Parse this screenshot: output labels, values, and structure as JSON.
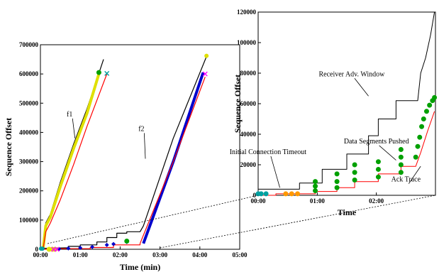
{
  "chart_data": [
    {
      "type": "line",
      "panel": "main",
      "xlabel": "Time (min)",
      "ylabel": "Sequence Offset",
      "xlim": [
        0,
        300
      ],
      "ylim": [
        0,
        700000
      ],
      "x_ticks": [
        {
          "v": 0,
          "label": "00:00"
        },
        {
          "v": 60,
          "label": "01:00"
        },
        {
          "v": 120,
          "label": "02:00"
        },
        {
          "v": 180,
          "label": "03:00"
        },
        {
          "v": 240,
          "label": "04:00"
        },
        {
          "v": 300,
          "label": "05:00"
        }
      ],
      "y_ticks": [
        {
          "v": 0,
          "label": "0"
        },
        {
          "v": 100000,
          "label": "100000"
        },
        {
          "v": 200000,
          "label": "200000"
        },
        {
          "v": 300000,
          "label": "300000"
        },
        {
          "v": 400000,
          "label": "400000"
        },
        {
          "v": 500000,
          "label": "500000"
        },
        {
          "v": 600000,
          "label": "600000"
        },
        {
          "v": 700000,
          "label": "700000"
        }
      ],
      "annotations": [
        {
          "text": "f1",
          "x": 44,
          "y": 455000,
          "ax": 52,
          "ay": 380000
        },
        {
          "text": "f2",
          "x": 152,
          "y": 405000,
          "ax": 158,
          "ay": 310000
        }
      ],
      "series": [
        {
          "id": "f1-window",
          "color": "#000000",
          "width": 1.2,
          "points": [
            [
              4,
              0
            ],
            [
              6,
              40000
            ],
            [
              8,
              90000
            ],
            [
              15,
              120000
            ],
            [
              30,
              230000
            ],
            [
              50,
              360000
            ],
            [
              70,
              480000
            ],
            [
              95,
              650000
            ]
          ]
        },
        {
          "id": "f1-segments",
          "color": "#e0e000",
          "width": 4,
          "points": [
            [
              4,
              0
            ],
            [
              8,
              80000
            ],
            [
              15,
              110000
            ],
            [
              30,
              215000
            ],
            [
              50,
              345000
            ],
            [
              70,
              465000
            ],
            [
              88,
              600000
            ]
          ]
        },
        {
          "id": "f1-ack",
          "color": "#ff0000",
          "width": 1.2,
          "points": [
            [
              4,
              0
            ],
            [
              8,
              60000
            ],
            [
              15,
              90000
            ],
            [
              30,
              170000
            ],
            [
              50,
              290000
            ],
            [
              70,
              420000
            ],
            [
              100,
              600000
            ]
          ]
        },
        {
          "id": "f2-window",
          "color": "#000000",
          "width": 1.2,
          "points": [
            [
              0,
              3000
            ],
            [
              42,
              5000
            ],
            [
              42,
              10000
            ],
            [
              60,
              10000
            ],
            [
              60,
              15000
            ],
            [
              85,
              15000
            ],
            [
              85,
              25000
            ],
            [
              100,
              25000
            ],
            [
              100,
              40000
            ],
            [
              115,
              40000
            ],
            [
              115,
              55000
            ],
            [
              130,
              55000
            ],
            [
              130,
              60000
            ],
            [
              150,
              60000
            ],
            [
              155,
              80000
            ],
            [
              200,
              380000
            ],
            [
              250,
              660000
            ]
          ]
        },
        {
          "id": "f2-segments",
          "color": "#0000cc",
          "width": 4,
          "points": [
            [
              155,
              20000
            ],
            [
              200,
              300000
            ],
            [
              245,
              605000
            ]
          ]
        },
        {
          "id": "f2-ack",
          "color": "#ff0000",
          "width": 1.2,
          "points": [
            [
              0,
              0
            ],
            [
              15,
              0
            ],
            [
              15,
              2000
            ],
            [
              75,
              2000
            ],
            [
              75,
              6000
            ],
            [
              110,
              6000
            ],
            [
              110,
              15000
            ],
            [
              150,
              15000
            ],
            [
              150,
              20000
            ],
            [
              200,
              300000
            ],
            [
              248,
              590000
            ]
          ]
        }
      ],
      "markers": [
        {
          "shape": "circle",
          "color": "#00a0a0",
          "size": 2.5,
          "points": [
            [
              1,
              2000
            ],
            [
              3,
              2000
            ]
          ]
        },
        {
          "shape": "diamond",
          "color": "#0000cc",
          "size": 3,
          "points": [
            [
              28,
              1000
            ],
            [
              42,
              3000
            ],
            [
              60,
              5000
            ],
            [
              78,
              8000
            ],
            [
              100,
              15000
            ],
            [
              110,
              18000
            ],
            [
              130,
              25000
            ]
          ]
        },
        {
          "shape": "circle",
          "color": "#e0e000",
          "size": 3,
          "points": [
            [
              13,
              0
            ],
            [
              18,
              0
            ],
            [
              22,
              0
            ]
          ]
        },
        {
          "shape": "x",
          "color": "#ff00ff",
          "size": 3,
          "points": [
            [
              20,
              0
            ],
            [
              25,
              0
            ],
            [
              248,
              600000
            ]
          ]
        },
        {
          "shape": "x",
          "color": "#00a0a0",
          "size": 3,
          "points": [
            [
              100,
              602000
            ]
          ]
        },
        {
          "shape": "circle",
          "color": "#00a000",
          "size": 3,
          "points": [
            [
              88,
              605000
            ],
            [
              130,
              28000
            ]
          ]
        },
        {
          "shape": "circle",
          "color": "#e0e000",
          "size": 2.5,
          "points": [
            [
              250,
              662000
            ]
          ]
        }
      ]
    },
    {
      "type": "line",
      "panel": "inset",
      "xlabel": "Time",
      "ylabel": "Sequence Offset",
      "xlim": [
        0,
        180
      ],
      "ylim": [
        0,
        120000
      ],
      "x_ticks": [
        {
          "v": 0,
          "label": "00:00"
        },
        {
          "v": 60,
          "label": "01:00"
        },
        {
          "v": 120,
          "label": "02:00"
        }
      ],
      "y_ticks": [
        {
          "v": 0,
          "label": "0"
        },
        {
          "v": 20000,
          "label": "20000"
        },
        {
          "v": 40000,
          "label": "40000"
        },
        {
          "v": 60000,
          "label": "60000"
        },
        {
          "v": 80000,
          "label": "80000"
        },
        {
          "v": 100000,
          "label": "100000"
        },
        {
          "v": 120000,
          "label": "120000"
        }
      ],
      "annotations": [
        {
          "text": "Receiver Adv. Window",
          "x": 95,
          "y": 78000,
          "ax": 112,
          "ay": 65000
        },
        {
          "text": "Data Segments Pushed",
          "x": 120,
          "y": 34000,
          "ax": 140,
          "ay": 23000
        },
        {
          "text": "Initial Connection Timeout",
          "x": 10,
          "y": 27000,
          "ax": 22,
          "ay": 5000
        },
        {
          "text": "Ack Trace",
          "x": 150,
          "y": 9000,
          "ax": 165,
          "ay": 19000
        }
      ],
      "series": [
        {
          "id": "inset-window",
          "color": "#000000",
          "width": 1,
          "points": [
            [
              0,
              4000
            ],
            [
              42,
              4000
            ],
            [
              42,
              8000
            ],
            [
              65,
              8000
            ],
            [
              65,
              17000
            ],
            [
              90,
              17000
            ],
            [
              90,
              27000
            ],
            [
              112,
              27000
            ],
            [
              112,
              39000
            ],
            [
              122,
              39000
            ],
            [
              122,
              50000
            ],
            [
              140,
              50000
            ],
            [
              140,
              62000
            ],
            [
              162,
              62000
            ],
            [
              165,
              80000
            ],
            [
              170,
              90000
            ],
            [
              175,
              105000
            ],
            [
              179,
              120000
            ]
          ]
        },
        {
          "id": "inset-ack",
          "color": "#ff0000",
          "width": 1,
          "points": [
            [
              0,
              0
            ],
            [
              18,
              0
            ],
            [
              18,
              1000
            ],
            [
              58,
              1000
            ],
            [
              58,
              2500
            ],
            [
              80,
              2500
            ],
            [
              80,
              5000
            ],
            [
              98,
              5000
            ],
            [
              98,
              9000
            ],
            [
              122,
              9000
            ],
            [
              122,
              14000
            ],
            [
              145,
              14000
            ],
            [
              145,
              19000
            ],
            [
              160,
              19000
            ],
            [
              165,
              28000
            ],
            [
              172,
              42000
            ],
            [
              179,
              55000
            ]
          ]
        }
      ],
      "markers": [
        {
          "shape": "circle",
          "color": "#00a0a0",
          "size": 3,
          "points": [
            [
              0,
              1000
            ],
            [
              3,
              1000
            ],
            [
              8,
              1000
            ]
          ]
        },
        {
          "shape": "circle",
          "color": "#ff9900",
          "size": 3,
          "points": [
            [
              28,
              1000
            ],
            [
              34,
              1000
            ],
            [
              40,
              1000
            ]
          ]
        },
        {
          "shape": "circle",
          "color": "#00a000",
          "size": 3,
          "points": [
            [
              58,
              3000
            ],
            [
              58,
              6000
            ],
            [
              58,
              9000
            ],
            [
              80,
              5000
            ],
            [
              80,
              9000
            ],
            [
              80,
              14000
            ],
            [
              98,
              10000
            ],
            [
              98,
              15000
            ],
            [
              98,
              20000
            ],
            [
              122,
              12000
            ],
            [
              122,
              17000
            ],
            [
              122,
              22000
            ],
            [
              145,
              15000
            ],
            [
              145,
              20000
            ],
            [
              145,
              25000
            ],
            [
              145,
              30000
            ],
            [
              160,
              25000
            ],
            [
              162,
              32000
            ],
            [
              164,
              38000
            ],
            [
              166,
              45000
            ],
            [
              168,
              50000
            ],
            [
              171,
              55000
            ],
            [
              174,
              59000
            ],
            [
              177,
              62000
            ],
            [
              179,
              64000
            ]
          ]
        }
      ]
    }
  ],
  "zoom_connector": {
    "from": "main",
    "to": "inset"
  }
}
